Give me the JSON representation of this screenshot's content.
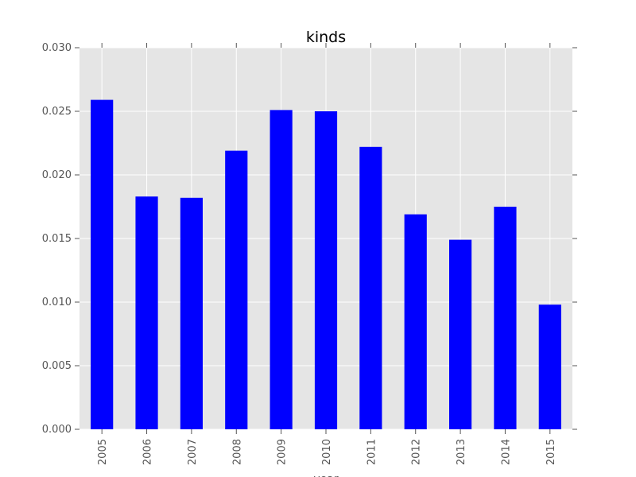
{
  "chart_data": {
    "type": "bar",
    "title": "kinds",
    "xlabel": "year",
    "ylabel": "",
    "categories": [
      "2005",
      "2006",
      "2007",
      "2008",
      "2009",
      "2010",
      "2011",
      "2012",
      "2013",
      "2014",
      "2015"
    ],
    "values": [
      0.0259,
      0.0183,
      0.0182,
      0.0219,
      0.0251,
      0.025,
      0.0222,
      0.0169,
      0.0149,
      0.0175,
      0.0098
    ],
    "ylim": [
      0,
      0.03
    ],
    "yticks": [
      "0.000",
      "0.005",
      "0.010",
      "0.015",
      "0.020",
      "0.025",
      "0.030"
    ],
    "grid": true,
    "legend": "none",
    "colors": {
      "bar": "#0000ff",
      "plot_background": "#e5e5e5",
      "grid": "#ffffff",
      "text": "#555555"
    }
  }
}
